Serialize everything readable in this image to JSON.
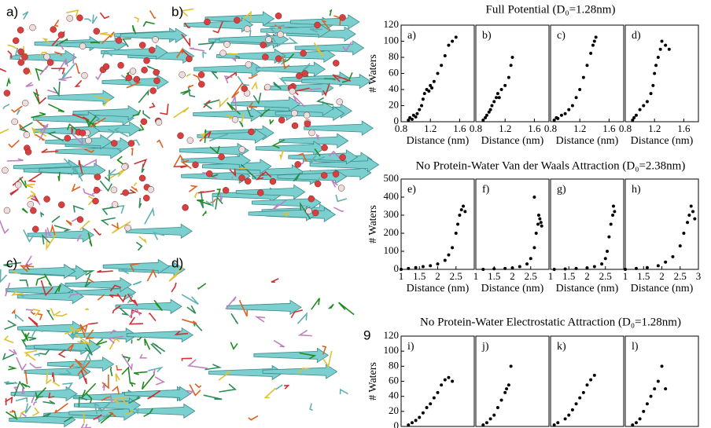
{
  "images": [
    {
      "label": "a)"
    },
    {
      "label": "b)"
    },
    {
      "label": "c)"
    },
    {
      "label": "d)"
    }
  ],
  "figure_number": "9",
  "rows": [
    {
      "title": "Full Potential (D₀=1.28nm)"
    },
    {
      "title": "No Protein-Water Van der Waals Attraction (D₀=2.38nm)"
    },
    {
      "title": "No Protein-Water Electrostatic Attraction (D₀=1.28nm)"
    }
  ],
  "chart_data": [
    {
      "type": "scatter",
      "panel_label": "a)",
      "ylabel": "# Waters",
      "xlabel": "Distance (nm)",
      "xlim": [
        0.8,
        1.8
      ],
      "xticks": [
        0.8,
        1.2,
        1.6
      ],
      "ylim": [
        0,
        120
      ],
      "yticks": [
        0,
        20,
        40,
        60,
        80,
        100,
        120
      ],
      "color": "#000000",
      "x": [
        0.9,
        0.92,
        0.95,
        0.97,
        1.0,
        1.02,
        1.05,
        1.08,
        1.1,
        1.12,
        1.15,
        1.18,
        1.2,
        1.22,
        1.25,
        1.3,
        1.35,
        1.4,
        1.45,
        1.5,
        1.55
      ],
      "values": [
        2,
        5,
        3,
        8,
        6,
        10,
        15,
        20,
        28,
        35,
        40,
        38,
        45,
        42,
        50,
        60,
        70,
        82,
        95,
        100,
        105
      ]
    },
    {
      "type": "scatter",
      "panel_label": "b)",
      "xlabel": "Distance (nm)",
      "xlim": [
        0.8,
        1.8
      ],
      "xticks": [
        0.8,
        1.2,
        1.6
      ],
      "ylim": [
        0,
        120
      ],
      "color": "#000000",
      "x": [
        0.9,
        0.93,
        0.95,
        0.98,
        1.0,
        1.02,
        1.05,
        1.08,
        1.1,
        1.12,
        1.15,
        1.2,
        1.25,
        1.28,
        1.3
      ],
      "values": [
        2,
        5,
        8,
        12,
        15,
        20,
        25,
        30,
        35,
        30,
        40,
        45,
        55,
        70,
        80
      ]
    },
    {
      "type": "scatter",
      "panel_label": "c)",
      "xlabel": "Distance (nm)",
      "xlim": [
        0.8,
        1.8
      ],
      "xticks": [
        0.8,
        1.2,
        1.6
      ],
      "ylim": [
        0,
        120
      ],
      "color": "#000000",
      "x": [
        0.85,
        0.88,
        0.9,
        0.95,
        1.0,
        1.05,
        1.1,
        1.15,
        1.2,
        1.25,
        1.3,
        1.35,
        1.38,
        1.4,
        1.42
      ],
      "values": [
        2,
        5,
        4,
        8,
        10,
        15,
        20,
        30,
        40,
        55,
        70,
        85,
        95,
        100,
        105
      ]
    },
    {
      "type": "scatter",
      "panel_label": "d)",
      "xlabel": "Distance (nm)",
      "xlim": [
        0.8,
        1.8
      ],
      "xticks": [
        0.8,
        1.2,
        1.6
      ],
      "ylim": [
        0,
        120
      ],
      "color": "#000000",
      "x": [
        0.9,
        0.92,
        0.95,
        1.0,
        1.05,
        1.1,
        1.15,
        1.18,
        1.2,
        1.22,
        1.25,
        1.28,
        1.3,
        1.35,
        1.4
      ],
      "values": [
        2,
        5,
        8,
        15,
        20,
        25,
        35,
        45,
        60,
        70,
        80,
        90,
        100,
        95,
        90
      ]
    },
    {
      "type": "scatter",
      "panel_label": "e)",
      "ylabel": "# Waters",
      "xlabel": "Distance (nm)",
      "xlim": [
        1,
        3
      ],
      "xticks": [
        1,
        1.5,
        2,
        2.5
      ],
      "ylim": [
        0,
        500
      ],
      "yticks": [
        0,
        100,
        200,
        300,
        400,
        500
      ],
      "color": "#000000",
      "x": [
        1,
        1.2,
        1.4,
        1.6,
        1.8,
        2.0,
        2.2,
        2.3,
        2.4,
        2.5,
        2.55,
        2.6,
        2.65,
        2.7,
        2.75
      ],
      "values": [
        0,
        5,
        10,
        15,
        20,
        30,
        50,
        80,
        120,
        200,
        250,
        300,
        330,
        350,
        320
      ]
    },
    {
      "type": "scatter",
      "panel_label": "f)",
      "xlabel": "Distance (nm)",
      "xlim": [
        1,
        3
      ],
      "xticks": [
        1,
        1.5,
        2,
        2.5
      ],
      "ylim": [
        0,
        500
      ],
      "color": "#000000",
      "x": [
        1.2,
        1.5,
        1.8,
        2.0,
        2.2,
        2.4,
        2.5,
        2.6,
        2.65,
        2.7,
        2.72,
        2.75,
        2.78,
        2.8,
        2.6
      ],
      "values": [
        0,
        3,
        5,
        8,
        15,
        30,
        60,
        120,
        200,
        250,
        300,
        280,
        260,
        240,
        400
      ]
    },
    {
      "type": "scatter",
      "panel_label": "g)",
      "xlabel": "Distance (nm)",
      "xlim": [
        1,
        3
      ],
      "xticks": [
        1,
        1.5,
        2,
        2.5
      ],
      "ylim": [
        0,
        500
      ],
      "color": "#000000",
      "x": [
        1.1,
        1.4,
        1.7,
        2.0,
        2.2,
        2.4,
        2.5,
        2.55,
        2.6,
        2.65,
        2.7,
        2.72,
        2.75
      ],
      "values": [
        0,
        2,
        5,
        8,
        15,
        30,
        60,
        100,
        180,
        250,
        300,
        350,
        320
      ]
    },
    {
      "type": "scatter",
      "panel_label": "h)",
      "xlabel": "Distance (nm)",
      "xlim": [
        1,
        3
      ],
      "xticks": [
        1,
        1.5,
        2,
        2.5,
        3
      ],
      "ylim": [
        0,
        500
      ],
      "color": "#000000",
      "x": [
        1,
        1.3,
        1.6,
        1.9,
        2.1,
        2.3,
        2.5,
        2.6,
        2.7,
        2.75,
        2.8,
        2.85,
        2.9
      ],
      "values": [
        0,
        5,
        10,
        20,
        40,
        70,
        130,
        200,
        260,
        300,
        350,
        320,
        280
      ]
    },
    {
      "type": "scatter",
      "panel_label": "i)",
      "ylabel": "# Waters",
      "xlim": [
        0.8,
        1.8
      ],
      "ylim": [
        0,
        120
      ],
      "yticks": [
        0,
        20,
        40,
        60,
        80,
        100,
        120
      ],
      "color": "#000000",
      "x": [
        0.9,
        0.95,
        1.0,
        1.05,
        1.1,
        1.15,
        1.2,
        1.25,
        1.3,
        1.35,
        1.4,
        1.45,
        1.5
      ],
      "values": [
        2,
        5,
        8,
        12,
        18,
        25,
        30,
        38,
        45,
        55,
        62,
        65,
        60
      ]
    },
    {
      "type": "scatter",
      "panel_label": "j)",
      "xlim": [
        0.8,
        1.8
      ],
      "ylim": [
        0,
        120
      ],
      "color": "#000000",
      "x": [
        0.9,
        0.95,
        1.0,
        1.05,
        1.1,
        1.15,
        1.2,
        1.22,
        1.25,
        1.28
      ],
      "values": [
        2,
        5,
        10,
        15,
        25,
        35,
        45,
        50,
        55,
        80
      ]
    },
    {
      "type": "scatter",
      "panel_label": "k)",
      "xlim": [
        0.8,
        1.8
      ],
      "ylim": [
        0,
        120
      ],
      "color": "#000000",
      "x": [
        0.85,
        0.9,
        1.0,
        1.05,
        1.1,
        1.15,
        1.2,
        1.25,
        1.3,
        1.35,
        1.4
      ],
      "values": [
        2,
        5,
        10,
        15,
        22,
        30,
        38,
        45,
        55,
        62,
        68
      ]
    },
    {
      "type": "scatter",
      "panel_label": "l)",
      "xlim": [
        0.8,
        1.8
      ],
      "ylim": [
        0,
        120
      ],
      "color": "#000000",
      "x": [
        0.9,
        0.95,
        1.0,
        1.05,
        1.1,
        1.15,
        1.2,
        1.25,
        1.3,
        1.35
      ],
      "values": [
        2,
        5,
        10,
        20,
        30,
        40,
        50,
        60,
        80,
        50
      ]
    }
  ]
}
